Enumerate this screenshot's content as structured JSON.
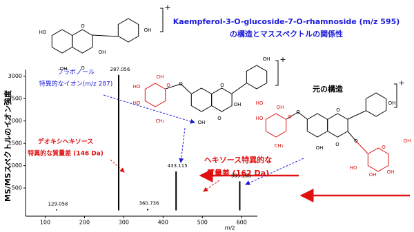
{
  "chart_data": {
    "type": "bar",
    "title": "Kaempferol-3-O-glucoside-7-O-rhamnoside (m/z 595)",
    "subtitle": "の構造とマススペクトルの関係性",
    "xlabel": "m/z",
    "ylabel": "MS/MSスペクトルのイオン強度",
    "x": [
      129.058,
      287.056,
      360.736,
      433.115,
      595.168
    ],
    "values": [
      20,
      3030,
      30,
      870,
      650
    ],
    "color": "#000000",
    "xlim": [
      50,
      640
    ],
    "ylim": [
      -130,
      3150
    ],
    "xticks": [
      100,
      200,
      300,
      400,
      500,
      600
    ],
    "yticks": [
      500,
      1000,
      1500,
      2000,
      2500,
      3000
    ],
    "annotations": [
      {
        "lines": [
          "フラボノール",
          "特異的なイオン(m/z 287)"
        ],
        "color": "#1a1adb"
      },
      {
        "lines": [
          "デオキシヘキソース",
          "特異的な質量差 (146 Da)"
        ],
        "color": "#e01010"
      },
      {
        "lines": [
          "ヘキソース特異的な",
          "質量差 (162 Da)"
        ],
        "color": "#e01010"
      },
      {
        "lines": [
          "元の構造"
        ],
        "color": "#000000"
      }
    ],
    "structures": [
      {
        "charge": "+",
        "labels": [
          "HO",
          "O",
          "OH",
          "OH",
          "OH",
          "O"
        ]
      },
      {
        "charge": "+",
        "labels": [
          "HO",
          "HO",
          "OH",
          "CH₃",
          "O",
          "O",
          "O",
          "OH",
          "OH",
          "OH",
          "O"
        ]
      },
      {
        "charge": "+",
        "labels": [
          "HO",
          "HO",
          "OH",
          "CH₃",
          "O",
          "O",
          "O",
          "OH",
          "OH",
          "O",
          "O",
          "O",
          "OH",
          "OH",
          "HO",
          "OH"
        ]
      }
    ]
  }
}
